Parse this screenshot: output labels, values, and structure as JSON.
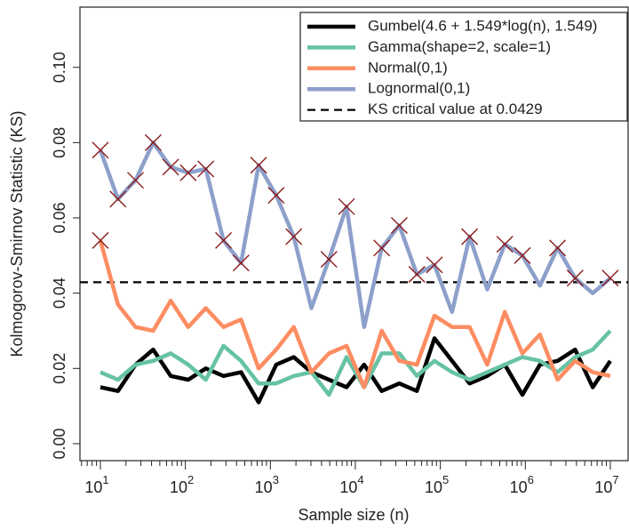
{
  "chart_data": {
    "type": "line",
    "xlabel": "Sample size (n)",
    "ylabel": "Kolmogorov-Smirnov Statistic (KS)",
    "x": [
      10,
      16.1,
      25.9,
      41.8,
      67.2,
      108,
      174,
      281,
      452,
      728,
      1172,
      1887,
      3039,
      4894,
      7880,
      12690,
      20430,
      32900,
      52980,
      85310,
      137400,
      221200,
      356200,
      573600,
      923600,
      1487000,
      2395000,
      3857000,
      6210000,
      10000000
    ],
    "series": [
      {
        "name": "Gumbel(4.6 + 1.549*log(n), 1.549)",
        "color": "#000000",
        "values": [
          0.015,
          0.014,
          0.021,
          0.025,
          0.018,
          0.017,
          0.02,
          0.018,
          0.019,
          0.011,
          0.021,
          0.023,
          0.019,
          0.017,
          0.015,
          0.021,
          0.014,
          0.016,
          0.014,
          0.028,
          0.022,
          0.016,
          0.018,
          0.021,
          0.013,
          0.021,
          0.022,
          0.025,
          0.015,
          0.022
        ]
      },
      {
        "name": "Gamma(shape=2, scale=1)",
        "color": "#66c2a5",
        "values": [
          0.019,
          0.017,
          0.021,
          0.022,
          0.024,
          0.021,
          0.017,
          0.026,
          0.022,
          0.016,
          0.016,
          0.018,
          0.019,
          0.013,
          0.023,
          0.015,
          0.024,
          0.024,
          0.018,
          0.022,
          0.019,
          0.017,
          0.019,
          0.021,
          0.023,
          0.022,
          0.019,
          0.023,
          0.025,
          0.03
        ]
      },
      {
        "name": "Normal(0,1)",
        "color": "#fc8d62",
        "values": [
          0.054,
          0.037,
          0.031,
          0.03,
          0.038,
          0.031,
          0.036,
          0.031,
          0.033,
          0.02,
          0.025,
          0.031,
          0.019,
          0.024,
          0.026,
          0.015,
          0.03,
          0.022,
          0.021,
          0.034,
          0.031,
          0.031,
          0.021,
          0.035,
          0.024,
          0.029,
          0.017,
          0.022,
          0.019,
          0.018
        ]
      },
      {
        "name": "Lognormal(0,1)",
        "color": "#8da0cb",
        "values": [
          0.078,
          0.065,
          0.07,
          0.08,
          0.0735,
          0.072,
          0.073,
          0.054,
          0.048,
          0.074,
          0.066,
          0.055,
          0.036,
          0.049,
          0.063,
          0.031,
          0.052,
          0.058,
          0.045,
          0.0475,
          0.035,
          0.055,
          0.041,
          0.053,
          0.05,
          0.042,
          0.052,
          0.044,
          0.04,
          0.044
        ]
      }
    ],
    "hline": {
      "name": "KS critical value at 0.0429",
      "value": 0.0429,
      "color": "#000000",
      "dashed": true
    },
    "marker_color": "#8b1a1a",
    "xscale": "log",
    "xlim": [
      5.75,
      16200000
    ],
    "ylim": [
      -0.0045,
      0.116
    ],
    "xticks": [
      {
        "value": 10,
        "label": "10",
        "exponent": "1"
      },
      {
        "value": 100,
        "label": "10",
        "exponent": "2"
      },
      {
        "value": 1000,
        "label": "10",
        "exponent": "3"
      },
      {
        "value": 10000,
        "label": "10",
        "exponent": "4"
      },
      {
        "value": 100000,
        "label": "10",
        "exponent": "5"
      },
      {
        "value": 1000000,
        "label": "10",
        "exponent": "6"
      },
      {
        "value": 10000000,
        "label": "10",
        "exponent": "7"
      }
    ],
    "xminorticks": [
      6,
      7,
      8,
      9,
      20,
      30,
      40,
      50,
      60,
      70,
      80,
      90,
      200,
      300,
      400,
      500,
      600,
      700,
      800,
      900,
      2000,
      3000,
      4000,
      5000,
      6000,
      7000,
      8000,
      9000,
      20000,
      30000,
      40000,
      50000,
      60000,
      70000,
      80000,
      90000,
      200000,
      300000,
      400000,
      500000,
      600000,
      700000,
      800000,
      900000,
      2000000,
      3000000,
      4000000,
      5000000,
      6000000,
      7000000,
      8000000,
      9000000
    ],
    "yticks": [
      {
        "value": 0,
        "label": "0.00"
      },
      {
        "value": 0.02,
        "label": "0.02"
      },
      {
        "value": 0.04,
        "label": "0.04"
      },
      {
        "value": 0.06,
        "label": "0.06"
      },
      {
        "value": 0.08,
        "label": "0.08"
      },
      {
        "value": 0.1,
        "label": "0.10"
      }
    ],
    "legend": "top-right"
  }
}
